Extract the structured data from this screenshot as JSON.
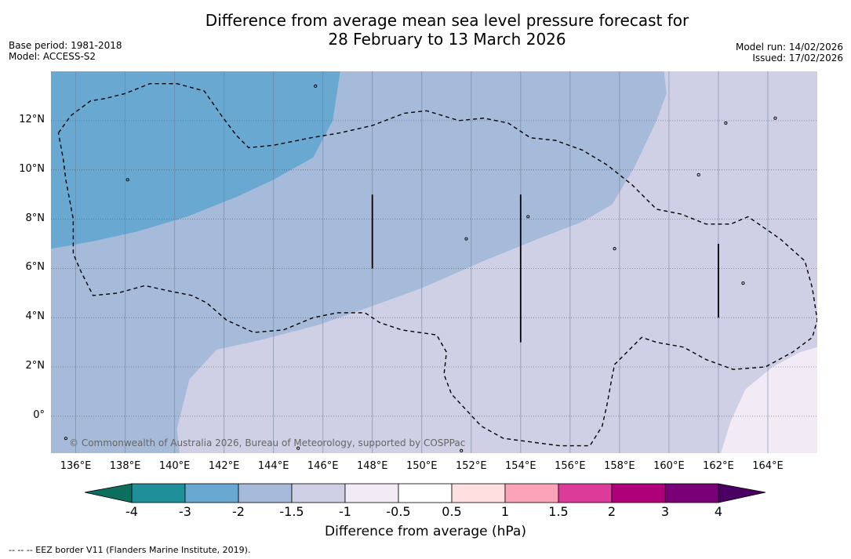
{
  "title_line1": "Difference from average mean sea level pressure forecast for",
  "title_line2": "28 February to 13 March 2026",
  "left_meta": {
    "base_period": "Base period: 1981-2018",
    "model": "Model: ACCESS-S2"
  },
  "right_meta": {
    "model_run": "Model run: 14/02/2026",
    "issued": "Issued: 17/02/2026"
  },
  "copyright": "© Commonwealth of Australia 2026, Bureau of Meteorology, supported by COSPPac",
  "footnote": "--  --  -- EEZ border V11 (Flanders Marine Institute, 2019).",
  "chart_data": {
    "type": "heatmap",
    "title": "Difference from average mean sea level pressure forecast for 28 February to 13 March 2026",
    "xlim": [
      135,
      166
    ],
    "ylim": [
      -1.5,
      14
    ],
    "xticks": [
      136,
      138,
      140,
      142,
      144,
      146,
      148,
      150,
      152,
      154,
      156,
      158,
      160,
      162,
      164
    ],
    "xtick_labels": [
      "136°E",
      "138°E",
      "140°E",
      "142°E",
      "144°E",
      "146°E",
      "148°E",
      "150°E",
      "152°E",
      "154°E",
      "156°E",
      "158°E",
      "160°E",
      "162°E",
      "164°E"
    ],
    "yticks": [
      0,
      2,
      4,
      6,
      8,
      10,
      12
    ],
    "ytick_labels": [
      "0°",
      "2°N",
      "4°N",
      "6°N",
      "8°N",
      "10°N",
      "12°N"
    ],
    "grid": true,
    "regions": [
      {
        "name": "region-2-to-1.5",
        "range": "-2 to -1.5",
        "color": "#a6bad9",
        "polygon": [
          [
            135,
            14
          ],
          [
            166,
            14
          ],
          [
            166,
            -1.5
          ],
          [
            135,
            -1.5
          ]
        ]
      },
      {
        "name": "region-1.5-to-1",
        "range": "-1.5 to -1",
        "color": "#cfd0e6",
        "polygon": [
          [
            160,
            14
          ],
          [
            166,
            14
          ],
          [
            166,
            -1.5
          ],
          [
            140.2,
            -1.5
          ],
          [
            140.1,
            -0.5
          ],
          [
            140.6,
            1.5
          ],
          [
            141.7,
            2.7
          ],
          [
            143.5,
            3.1
          ],
          [
            145.8,
            3.7
          ],
          [
            147.8,
            4.4
          ],
          [
            150,
            5.2
          ],
          [
            152.5,
            6.3
          ],
          [
            154.7,
            7.2
          ],
          [
            156.5,
            7.9
          ],
          [
            157.7,
            8.6
          ],
          [
            158.6,
            10.1
          ],
          [
            159.5,
            12
          ],
          [
            159.9,
            13.1
          ],
          [
            159.8,
            14
          ]
        ]
      },
      {
        "name": "region-1-to-0.5",
        "range": "-1 to -0.5",
        "color": "#f2ebf5",
        "polygon": [
          [
            166,
            2.8
          ],
          [
            166,
            -1.5
          ],
          [
            162.1,
            -1.5
          ],
          [
            162.5,
            -0.2
          ],
          [
            163.1,
            1.1
          ],
          [
            164.2,
            2.0
          ],
          [
            165.3,
            2.6
          ]
        ]
      },
      {
        "name": "region-3-to-2",
        "range": "-3 to -2",
        "color": "#69a8d0",
        "polygon": [
          [
            135,
            14
          ],
          [
            146.7,
            14
          ],
          [
            146.4,
            12
          ],
          [
            145.6,
            10.5
          ],
          [
            144,
            9.6
          ],
          [
            142.5,
            8.9
          ],
          [
            140.5,
            8.1
          ],
          [
            138.5,
            7.5
          ],
          [
            136.7,
            7.1
          ],
          [
            135,
            6.8
          ]
        ]
      }
    ],
    "eez_border": [
      [
        [
          135.3,
          11.5
        ],
        [
          135.8,
          12.2
        ],
        [
          136.6,
          12.8
        ],
        [
          137.2,
          12.9
        ],
        [
          138,
          13.1
        ],
        [
          139,
          13.5
        ],
        [
          140.1,
          13.5
        ],
        [
          141.2,
          13.2
        ],
        [
          141.9,
          12.2
        ],
        [
          142.5,
          11.4
        ],
        [
          143,
          10.9
        ],
        [
          144,
          11
        ],
        [
          145.5,
          11.3
        ],
        [
          146.7,
          11.5
        ],
        [
          148,
          11.8
        ],
        [
          149.3,
          12.3
        ],
        [
          150.2,
          12.4
        ],
        [
          151.5,
          12
        ],
        [
          152.5,
          12.1
        ],
        [
          153.5,
          11.9
        ],
        [
          154.4,
          11.3
        ],
        [
          155.4,
          11.2
        ],
        [
          156.5,
          10.8
        ],
        [
          157.5,
          10.2
        ],
        [
          158.5,
          9.4
        ],
        [
          159.5,
          8.4
        ],
        [
          160.5,
          8.2
        ],
        [
          161.5,
          7.8
        ],
        [
          162.5,
          7.8
        ],
        [
          163.2,
          8.1
        ],
        [
          164.5,
          7.2
        ],
        [
          165.5,
          6.3
        ],
        [
          165.8,
          5.2
        ],
        [
          166,
          3.9
        ],
        [
          165.8,
          3.2
        ],
        [
          165,
          2.6
        ],
        [
          163.9,
          2
        ],
        [
          162.6,
          1.9
        ],
        [
          161.5,
          2.3
        ],
        [
          160.6,
          2.8
        ],
        [
          159.5,
          3.0
        ],
        [
          158.9,
          3.2
        ],
        [
          158.2,
          2.5
        ],
        [
          157.8,
          2.1
        ],
        [
          157.7,
          1.6
        ],
        [
          157.5,
          0.5
        ],
        [
          157.3,
          -0.4
        ],
        [
          156.8,
          -1.2
        ],
        [
          155.6,
          -1.2
        ],
        [
          153.3,
          -0.9
        ],
        [
          152.4,
          -0.4
        ],
        [
          151.2,
          0.9
        ],
        [
          150.9,
          1.7
        ],
        [
          151.0,
          2.6
        ],
        [
          150.6,
          3.3
        ],
        [
          149.2,
          3.5
        ],
        [
          148.3,
          3.8
        ],
        [
          147.7,
          4.2
        ],
        [
          146.6,
          4.2
        ],
        [
          145.6,
          4.0
        ],
        [
          144.4,
          3.5
        ],
        [
          143.2,
          3.4
        ],
        [
          142.1,
          3.9
        ],
        [
          141.3,
          4.6
        ],
        [
          140.7,
          4.9
        ],
        [
          139.7,
          5.1
        ],
        [
          138.8,
          5.3
        ],
        [
          137.7,
          5.0
        ],
        [
          136.7,
          4.9
        ],
        [
          136.2,
          5.9
        ],
        [
          135.9,
          6.6
        ],
        [
          135.9,
          8
        ],
        [
          135.6,
          9.6
        ],
        [
          135.5,
          10.4
        ],
        [
          135.3,
          11.5
        ]
      ]
    ],
    "eez_segments": [
      [
        [
          148,
          9
        ],
        [
          148,
          6
        ]
      ],
      [
        [
          154,
          9
        ],
        [
          154,
          3
        ]
      ],
      [
        [
          162,
          7
        ],
        [
          162,
          4
        ]
      ]
    ],
    "colorbar": {
      "levels": [
        "-4",
        "-3",
        "-2",
        "-1.5",
        "-1",
        "-0.5",
        "0.5",
        "1",
        "1.5",
        "2",
        "3",
        "4"
      ],
      "colors": [
        "#1f9099",
        "#69a8d0",
        "#a6bad9",
        "#cfd0e6",
        "#f2ebf5",
        "#ffffff",
        "#ffdfdf",
        "#fba3b8",
        "#dc3b9a",
        "#af0079",
        "#7a0077"
      ],
      "extend_min_color": "#0c6f5e",
      "extend_max_color": "#4a0062",
      "label": "Difference from average (hPa)"
    }
  }
}
